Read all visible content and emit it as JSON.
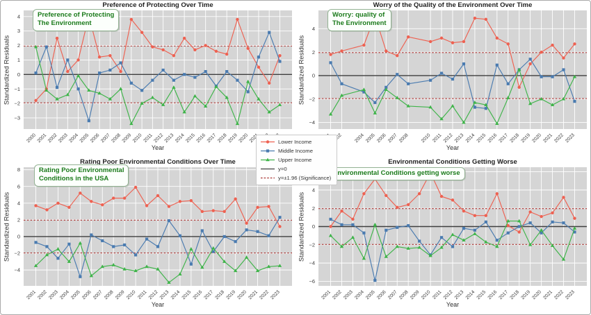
{
  "ylabel_shared": "Standardized Residuals",
  "xlabel_shared": "Year",
  "colors": {
    "lower_income": "#ee6151",
    "middle_income": "#4a7bb0",
    "upper_income": "#3eb449",
    "zero_line": "#3f3f3f",
    "significance_line": "#a93432",
    "plot_background": "#d5d5d5",
    "grid_line": "#ffffff",
    "annotation_text": "#1b7a1b",
    "annotation_border": "#94b294"
  },
  "legend": {
    "items": [
      {
        "label": "Lower Income",
        "marker": "circle",
        "color": "#ee6151",
        "style": "solid"
      },
      {
        "label": "Middle Income",
        "marker": "square",
        "color": "#4a7bb0",
        "style": "solid"
      },
      {
        "label": "Upper Income",
        "marker": "triangle",
        "color": "#3eb449",
        "style": "solid"
      },
      {
        "label": "y=0",
        "marker": "none",
        "color": "#3f3f3f",
        "style": "solid"
      },
      {
        "label": "y=±1.96 (Significance)",
        "marker": "none",
        "color": "#a93432",
        "style": "dashed"
      }
    ]
  },
  "chart_data": [
    {
      "type": "line",
      "title": "Preference of Protecting Over Time",
      "annotation": "Preference of Protecting\nThe Environment",
      "xlabel": "Year",
      "ylabel": "Standardized Residuals",
      "x": [
        2000,
        2001,
        2002,
        2003,
        2004,
        2005,
        2006,
        2007,
        2008,
        2009,
        2010,
        2011,
        2012,
        2013,
        2014,
        2015,
        2016,
        2017,
        2018,
        2019,
        2020,
        2021,
        2022,
        2023
      ],
      "series": [
        {
          "name": "Lower Income",
          "values": [
            -1.8,
            -1.0,
            2.5,
            0.2,
            1.0,
            4.05,
            1.2,
            1.3,
            0.2,
            3.8,
            2.9,
            1.9,
            1.7,
            1.3,
            2.5,
            1.7,
            2.0,
            1.6,
            1.4,
            3.8,
            1.8,
            0.5,
            -0.6,
            1.3
          ]
        },
        {
          "name": "Middle Income",
          "values": [
            0.1,
            1.9,
            -0.9,
            1.0,
            -1.0,
            -3.2,
            0.1,
            0.3,
            0.8,
            -0.6,
            -1.1,
            -0.4,
            0.3,
            -0.4,
            0.0,
            -0.2,
            0.2,
            -0.8,
            0.2,
            -0.4,
            -1.2,
            1.2,
            2.9,
            0.9
          ]
        },
        {
          "name": "Upper Income",
          "values": [
            1.9,
            -1.1,
            -1.7,
            -1.4,
            -0.1,
            -1.1,
            -1.3,
            -1.7,
            -1.0,
            -3.4,
            -2.0,
            -1.6,
            -2.1,
            -0.9,
            -2.6,
            -1.5,
            -2.2,
            -0.85,
            -1.6,
            -3.4,
            -0.5,
            -1.7,
            -2.6,
            -2.1
          ]
        }
      ],
      "yticks": [
        -3,
        -2,
        -1,
        0,
        1,
        2,
        3,
        4
      ],
      "ylim": [
        -3.77,
        4.42
      ],
      "xlim": [
        1998.85,
        2024.15
      ],
      "reference_lines": {
        "zero": 0,
        "significance": 1.96
      },
      "grid": true,
      "legend_position": "figure-center"
    },
    {
      "type": "line",
      "title": "Worry of the Quality of the Environment Over Time",
      "annotation": "Worry: quality of\nThe Environment",
      "xlabel": "Year",
      "ylabel": "Standardized Residuals",
      "x": [
        2001,
        2002,
        2004,
        2005,
        2006,
        2007,
        2008,
        2010,
        2011,
        2012,
        2013,
        2014,
        2015,
        2016,
        2017,
        2018,
        2019,
        2020,
        2021,
        2022,
        2023
      ],
      "series": [
        {
          "name": "Lower Income",
          "values": [
            1.8,
            2.1,
            2.6,
            5.1,
            2.1,
            1.7,
            3.3,
            2.9,
            3.2,
            2.8,
            2.9,
            4.9,
            4.8,
            3.2,
            2.7,
            -1.0,
            1.0,
            2.0,
            2.6,
            1.5,
            2.7
          ]
        },
        {
          "name": "Middle Income",
          "values": [
            1.1,
            -0.7,
            -1.4,
            -2.3,
            -1.0,
            0.1,
            -0.7,
            -0.4,
            0.2,
            -0.3,
            1.0,
            -2.7,
            -2.8,
            0.9,
            -0.7,
            0.5,
            1.4,
            -0.1,
            -0.1,
            0.5,
            -2.2
          ]
        },
        {
          "name": "Upper Income",
          "values": [
            -3.3,
            -1.7,
            -1.2,
            -3.2,
            -1.2,
            -1.9,
            -2.6,
            -2.7,
            -3.7,
            -2.6,
            -4.0,
            -2.3,
            -2.5,
            -4.1,
            -1.9,
            0.5,
            -2.4,
            -2.0,
            -2.5,
            -2.0,
            -0.1
          ]
        }
      ],
      "yticks": [
        -4,
        -2,
        0,
        2,
        4
      ],
      "ylim": [
        -4.56,
        5.56
      ],
      "xlim": [
        1999.9,
        2024.1
      ],
      "reference_lines": {
        "zero": 0,
        "significance": 1.96
      },
      "grid": true,
      "legend_position": "figure-center"
    },
    {
      "type": "line",
      "title": "Rating Poor Environmental Conditions Over Time",
      "annotation": "Rating Poor Environmental\nConditions in the USA",
      "xlabel": "Year",
      "ylabel": "Standardized Residuals",
      "x": [
        2001,
        2002,
        2003,
        2004,
        2005,
        2006,
        2007,
        2008,
        2009,
        2010,
        2011,
        2012,
        2013,
        2014,
        2015,
        2016,
        2017,
        2018,
        2019,
        2020,
        2021,
        2022,
        2023
      ],
      "series": [
        {
          "name": "Lower Income",
          "values": [
            3.7,
            3.2,
            4.0,
            3.5,
            5.2,
            4.2,
            3.8,
            4.6,
            4.6,
            5.9,
            3.7,
            4.9,
            3.6,
            4.2,
            4.3,
            3.0,
            3.1,
            3.0,
            4.5,
            1.6,
            3.5,
            3.6,
            1.2
          ]
        },
        {
          "name": "Middle Income",
          "values": [
            -0.7,
            -1.2,
            -2.6,
            -0.9,
            -4.8,
            0.2,
            -0.5,
            -1.2,
            -1.0,
            -2.2,
            -0.3,
            -1.2,
            1.9,
            0.1,
            -3.3,
            0.7,
            -1.8,
            0.0,
            -0.6,
            0.8,
            0.6,
            0.1,
            2.3
          ]
        },
        {
          "name": "Upper Income",
          "values": [
            -3.5,
            -2.2,
            -1.5,
            -3.0,
            -0.8,
            -4.7,
            -3.6,
            -3.4,
            -3.9,
            -4.1,
            -3.6,
            -3.9,
            -5.5,
            -4.5,
            -1.5,
            -3.7,
            -1.4,
            -3.0,
            -4.1,
            -2.5,
            -4.1,
            -3.6,
            -3.5
          ]
        }
      ],
      "yticks": [
        -4,
        -2,
        0,
        2,
        4,
        6,
        8
      ],
      "ylim": [
        -5.9,
        8.3
      ],
      "xlim": [
        1999.9,
        2024.1
      ],
      "reference_lines": {
        "zero": 0,
        "significance": 1.96
      },
      "grid": true,
      "legend_position": "figure-center"
    },
    {
      "type": "line",
      "title": "Environmental Conditions Getting Worse",
      "annotation": "Environmental Conditions getting worse",
      "xlabel": "Year",
      "ylabel": "Standardized Residuals",
      "x": [
        2001,
        2002,
        2003,
        2004,
        2005,
        2006,
        2007,
        2008,
        2009,
        2010,
        2011,
        2012,
        2013,
        2014,
        2015,
        2016,
        2017,
        2018,
        2019,
        2020,
        2021,
        2022,
        2023
      ],
      "series": [
        {
          "name": "Lower Income",
          "values": [
            0.0,
            1.7,
            0.8,
            3.6,
            5.2,
            3.4,
            2.1,
            2.4,
            3.6,
            5.9,
            3.3,
            2.9,
            1.7,
            1.2,
            1.2,
            3.6,
            0.1,
            -0.6,
            1.6,
            1.1,
            1.5,
            3.2,
            0.9
          ]
        },
        {
          "name": "Middle Income",
          "values": [
            0.8,
            0.2,
            0.2,
            -0.7,
            -5.9,
            -0.4,
            -0.1,
            0.1,
            -1.6,
            -3.1,
            -1.2,
            -2.2,
            -0.2,
            -0.4,
            0.5,
            -1.5,
            -0.7,
            0.0,
            0.4,
            -0.7,
            0.5,
            0.4,
            -0.6
          ]
        },
        {
          "name": "Upper Income",
          "values": [
            -1.0,
            -2.2,
            -1.2,
            -3.5,
            0.2,
            -3.3,
            -2.2,
            -2.4,
            -2.3,
            -3.2,
            -2.3,
            -0.9,
            -1.5,
            -0.8,
            -1.7,
            -2.2,
            0.6,
            0.6,
            -2.0,
            -0.4,
            -2.1,
            -3.6,
            -0.2
          ]
        }
      ],
      "yticks": [
        -6,
        -4,
        -2,
        0,
        2,
        4,
        6
      ],
      "ylim": [
        -6.5,
        6.5
      ],
      "xlim": [
        1999.9,
        2024.1
      ],
      "reference_lines": {
        "zero": 0,
        "significance": 1.96
      },
      "grid": true,
      "legend_position": "figure-center"
    }
  ]
}
